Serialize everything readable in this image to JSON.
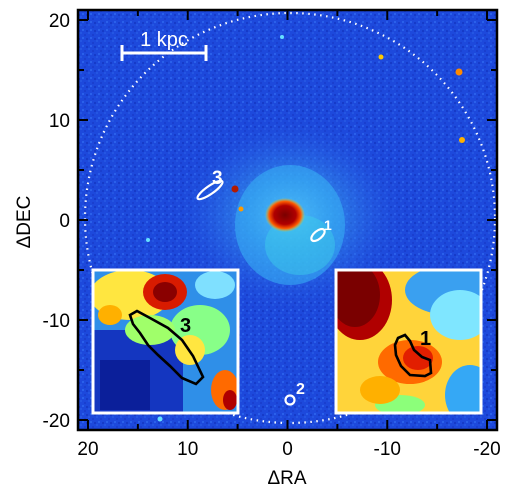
{
  "figure": {
    "xlabel": "ΔRA",
    "ylabel": "ΔDEC",
    "x_ticks": [
      "20",
      "10",
      "0",
      "-10",
      "-20"
    ],
    "y_ticks": [
      "20",
      "10",
      "0",
      "-10",
      "-20"
    ],
    "xlim": [
      21,
      -21
    ],
    "ylim": [
      -21,
      21
    ],
    "scale_bar_label": "1 kpc",
    "regions": [
      {
        "id": "1",
        "label": "1"
      },
      {
        "id": "2",
        "label": "2"
      },
      {
        "id": "3",
        "label": "3"
      }
    ],
    "inset_left_label": "3",
    "inset_right_label": "1",
    "colormap": "jet",
    "colors": {
      "background": "#1b45d8",
      "frame": "#000000",
      "annotation": "#ffffff"
    }
  }
}
